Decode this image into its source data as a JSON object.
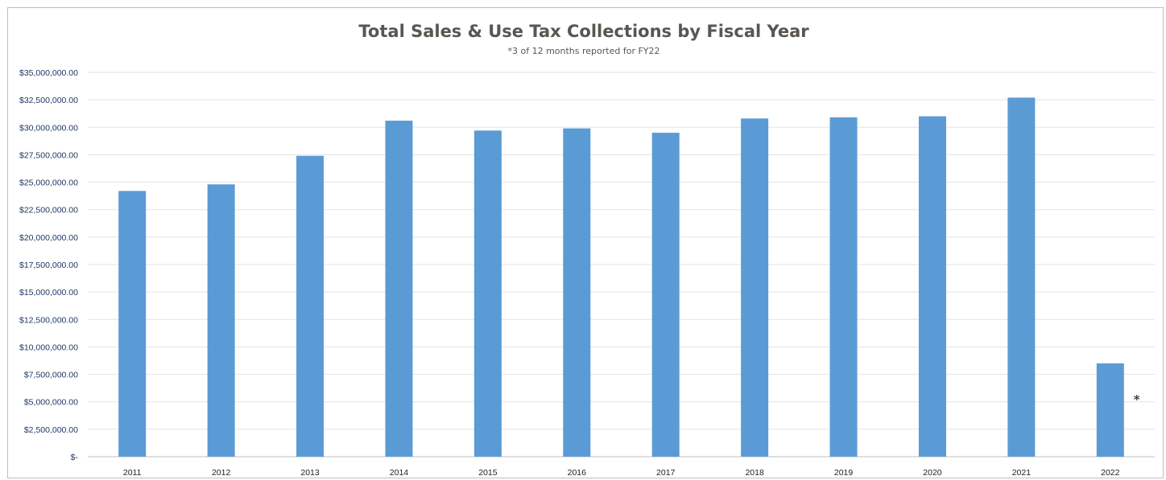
{
  "chart_data": {
    "type": "bar",
    "title": "Total Sales & Use Tax Collections by Fiscal Year",
    "subtitle": "*3 of 12 months reported for FY22",
    "xlabel": "",
    "ylabel": "",
    "categories": [
      "2011",
      "2012",
      "2013",
      "2014",
      "2015",
      "2016",
      "2017",
      "2018",
      "2019",
      "2020",
      "2021",
      "2022"
    ],
    "values": [
      24200000,
      24800000,
      27400000,
      30600000,
      29700000,
      29900000,
      29500000,
      30800000,
      30900000,
      31000000,
      32700000,
      8500000
    ],
    "ylim": [
      0,
      35000000
    ],
    "yticks": [
      0,
      2500000,
      5000000,
      7500000,
      10000000,
      12500000,
      15000000,
      17500000,
      20000000,
      22500000,
      25000000,
      27500000,
      30000000,
      32500000,
      35000000
    ],
    "ytick_labels": [
      "$-",
      "$2,500,000.00",
      "$5,000,000.00",
      "$7,500,000.00",
      "$10,000,000.00",
      "$12,500,000.00",
      "$15,000,000.00",
      "$17,500,000.00",
      "$20,000,000.00",
      "$22,500,000.00",
      "$25,000,000.00",
      "$27,500,000.00",
      "$30,000,000.00",
      "$32,500,000.00",
      "$35,000,000.00"
    ],
    "grid": true,
    "legend": "none",
    "bar_color": "#5b9bd5",
    "annotations": [
      {
        "category": "2022",
        "text": "*"
      }
    ]
  }
}
